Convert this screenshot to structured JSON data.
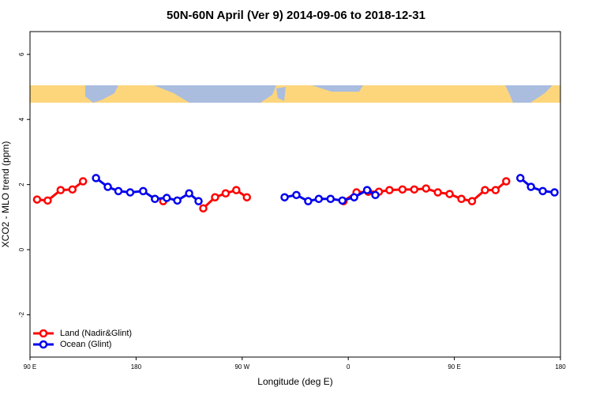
{
  "chart_data": {
    "type": "line",
    "title": "50N-60N April (Ver 9)   2014-09-06 to 2018-12-31",
    "x_label": "Longitude (deg E)",
    "y_label": "XCO2 - MLO trend (ppm)",
    "xlim": [
      90,
      540
    ],
    "ylim": [
      -3.3,
      6.7
    ],
    "xticks": [
      {
        "value": 90,
        "label": "90 E"
      },
      {
        "value": 180,
        "label": "180"
      },
      {
        "value": 270,
        "label": "90 W"
      },
      {
        "value": 360,
        "label": "0"
      },
      {
        "value": 450,
        "label": "90 E"
      },
      {
        "value": 540,
        "label": "180"
      }
    ],
    "yticks": [
      -2,
      0,
      2,
      4,
      6
    ],
    "legend": "bottom-left",
    "series": [
      {
        "name": "Land (Nadir&Glint)",
        "color": "#ff0000",
        "x": [
          96,
          105,
          116,
          126,
          135,
          null,
          203,
          null,
          237,
          247,
          256,
          265,
          274,
          null,
          356,
          367,
          377,
          386,
          395,
          406,
          416,
          426,
          436,
          446,
          456,
          465,
          476,
          485,
          494
        ],
        "values": [
          1.54,
          1.51,
          1.83,
          1.85,
          2.1,
          null,
          1.49,
          null,
          1.27,
          1.61,
          1.73,
          1.83,
          1.61,
          null,
          1.49,
          1.76,
          1.78,
          1.78,
          1.83,
          1.85,
          1.85,
          1.88,
          1.76,
          1.71,
          1.56,
          1.49,
          1.83,
          1.83,
          2.1
        ]
      },
      {
        "name": "Ocean (Glint)",
        "color": "#0000ee",
        "x": [
          146,
          156,
          165,
          175,
          186,
          196,
          206,
          215,
          225,
          233,
          null,
          306,
          316,
          326,
          335,
          345,
          355,
          365,
          376,
          383,
          null,
          506,
          515,
          525,
          535
        ],
        "values": [
          2.2,
          1.93,
          1.8,
          1.76,
          1.8,
          1.56,
          1.59,
          1.51,
          1.73,
          1.49,
          null,
          1.61,
          1.68,
          1.49,
          1.56,
          1.56,
          1.51,
          1.61,
          1.83,
          1.68,
          null,
          2.2,
          1.93,
          1.8,
          1.76
        ]
      }
    ]
  }
}
